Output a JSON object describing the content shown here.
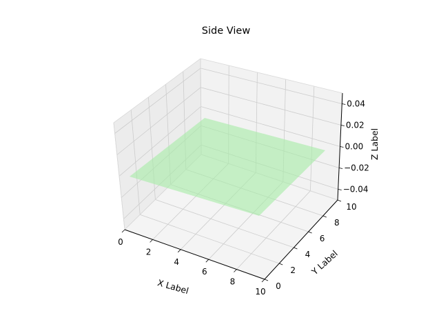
{
  "chart_data": {
    "type": "surface3d",
    "title": "Side View",
    "xlabel": "X Label",
    "ylabel": "Y Label",
    "zlabel": "Z Label",
    "xlim": [
      0,
      10
    ],
    "ylim": [
      0,
      10
    ],
    "zlim": [
      -0.05,
      0.05
    ],
    "xticks": [
      "0",
      "2",
      "4",
      "6",
      "8",
      "10"
    ],
    "yticks": [
      "0",
      "2",
      "4",
      "6",
      "8",
      "10"
    ],
    "zticks": [
      "0.04",
      "0.02",
      "0.00",
      "−0.02",
      "−0.04"
    ],
    "grid": true,
    "surface": {
      "description_z": 0,
      "x_range": [
        0,
        10
      ],
      "y_range": [
        0,
        10
      ],
      "z_value": 0.0,
      "color": "#90ee90",
      "opacity": 0.5
    }
  },
  "colors": {
    "pane_left": "#ececec",
    "pane_back": "#f2f2f2",
    "pane_floor": "#f4f4f4",
    "grid": "#cccccc",
    "surface": "#a8eba8"
  }
}
